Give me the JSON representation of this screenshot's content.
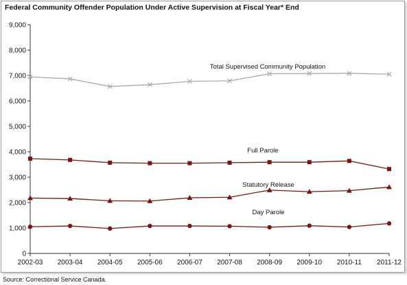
{
  "chart_data": {
    "type": "line",
    "title": "Federal Community Offender Population Under Active Supervision at Fiscal Year* End",
    "source": "Source:  Correctional Service Canada.",
    "categories": [
      "2002-03",
      "2003-04",
      "2004-05",
      "2005-06",
      "2006-07",
      "2007-08",
      "2008-09",
      "2009-10",
      "2010-11",
      "2011-12"
    ],
    "ylim": [
      0,
      9000
    ],
    "yticks": [
      "0",
      "1,000",
      "2,000",
      "3,000",
      "4,000",
      "5,000",
      "6,000",
      "7,000",
      "8,000",
      "9,000"
    ],
    "grid": false,
    "series": [
      {
        "name": "Total Supervised Community Population",
        "values": [
          6950,
          6870,
          6570,
          6640,
          6770,
          6790,
          7070,
          7080,
          7090,
          7050
        ],
        "color": "#a9a9a9",
        "marker": "x"
      },
      {
        "name": "Full Parole",
        "values": [
          3730,
          3680,
          3570,
          3550,
          3550,
          3570,
          3590,
          3590,
          3640,
          3320
        ],
        "color": "#7a1414",
        "marker": "square"
      },
      {
        "name": "Statutory Release",
        "values": [
          2180,
          2160,
          2070,
          2060,
          2190,
          2210,
          2490,
          2430,
          2470,
          2610
        ],
        "color": "#7a1414",
        "marker": "triangle"
      },
      {
        "name": "Day Parole",
        "values": [
          1050,
          1080,
          980,
          1080,
          1080,
          1070,
          1030,
          1090,
          1040,
          1180
        ],
        "color": "#7a1414",
        "marker": "circle"
      }
    ]
  }
}
